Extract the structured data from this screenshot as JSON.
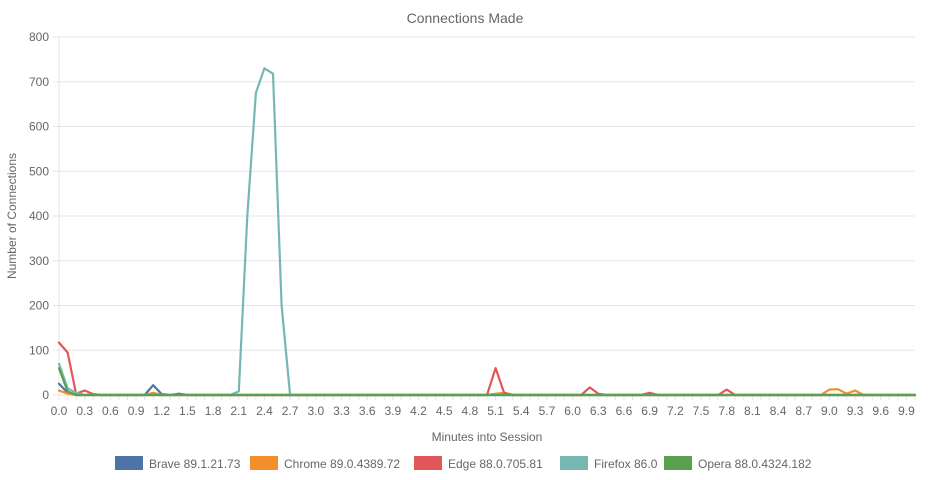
{
  "chart_data": {
    "type": "line",
    "title": "Connections Made",
    "xlabel": "Minutes into Session",
    "ylabel": "Number of Connections",
    "ylim": [
      0,
      800
    ],
    "yticks": [
      0,
      100,
      200,
      300,
      400,
      500,
      600,
      700,
      800
    ],
    "xlim": [
      0,
      10.0
    ],
    "xstep": 0.1,
    "xtick_labels": [
      "0.0",
      "0.3",
      "0.6",
      "0.9",
      "1.2",
      "1.5",
      "1.8",
      "2.1",
      "2.4",
      "2.7",
      "3.0",
      "3.3",
      "3.6",
      "3.9",
      "4.2",
      "4.5",
      "4.8",
      "5.1",
      "5.4",
      "5.7",
      "6.0",
      "6.3",
      "6.6",
      "6.9",
      "7.2",
      "7.5",
      "7.8",
      "8.1",
      "8.4",
      "8.7",
      "9.0",
      "9.3",
      "9.6",
      "9.9"
    ],
    "grid": true,
    "legend_position": "bottom",
    "series": [
      {
        "name": "Brave 89.1.21.73",
        "color": "#4e73a6",
        "points": [
          [
            0.0,
            25
          ],
          [
            0.1,
            5
          ],
          [
            0.2,
            0
          ],
          [
            1.0,
            0
          ],
          [
            1.1,
            22
          ],
          [
            1.2,
            2
          ],
          [
            1.3,
            0
          ],
          [
            1.4,
            3
          ],
          [
            1.5,
            0
          ],
          [
            10.0,
            0
          ]
        ]
      },
      {
        "name": "Chrome 89.0.4389.72",
        "color": "#f28e2b",
        "points": [
          [
            0.0,
            10
          ],
          [
            0.1,
            3
          ],
          [
            0.2,
            0
          ],
          [
            1.0,
            0
          ],
          [
            1.1,
            5
          ],
          [
            1.2,
            0
          ],
          [
            5.0,
            0
          ],
          [
            5.1,
            3
          ],
          [
            5.2,
            5
          ],
          [
            5.3,
            0
          ],
          [
            8.9,
            0
          ],
          [
            9.0,
            12
          ],
          [
            9.1,
            13
          ],
          [
            9.2,
            3
          ],
          [
            9.3,
            10
          ],
          [
            9.4,
            0
          ],
          [
            10.0,
            0
          ]
        ]
      },
      {
        "name": "Edge 88.0.705.81",
        "color": "#e15759",
        "points": [
          [
            0.0,
            117
          ],
          [
            0.1,
            95
          ],
          [
            0.2,
            3
          ],
          [
            0.3,
            10
          ],
          [
            0.4,
            2
          ],
          [
            0.5,
            0
          ],
          [
            5.0,
            0
          ],
          [
            5.1,
            60
          ],
          [
            5.2,
            5
          ],
          [
            5.3,
            0
          ],
          [
            6.1,
            0
          ],
          [
            6.2,
            17
          ],
          [
            6.3,
            3
          ],
          [
            6.4,
            0
          ],
          [
            6.8,
            0
          ],
          [
            6.9,
            5
          ],
          [
            7.0,
            0
          ],
          [
            7.7,
            0
          ],
          [
            7.8,
            12
          ],
          [
            7.9,
            0
          ],
          [
            10.0,
            0
          ]
        ]
      },
      {
        "name": "Firefox 86.0",
        "color": "#76b7b2",
        "points": [
          [
            0.0,
            70
          ],
          [
            0.1,
            15
          ],
          [
            0.2,
            5
          ],
          [
            0.3,
            0
          ],
          [
            2.0,
            0
          ],
          [
            2.1,
            8
          ],
          [
            2.2,
            400
          ],
          [
            2.3,
            675
          ],
          [
            2.4,
            730
          ],
          [
            2.5,
            718
          ],
          [
            2.6,
            200
          ],
          [
            2.7,
            0
          ],
          [
            10.0,
            0
          ]
        ]
      },
      {
        "name": "Opera 88.0.4324.182",
        "color": "#59a14f",
        "points": [
          [
            0.0,
            60
          ],
          [
            0.1,
            8
          ],
          [
            0.2,
            0
          ],
          [
            10.0,
            0
          ]
        ]
      }
    ]
  }
}
